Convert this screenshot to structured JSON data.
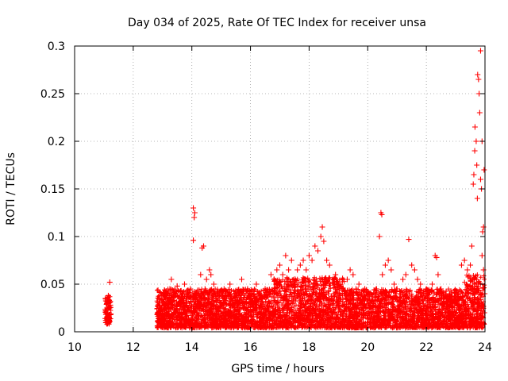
{
  "chart_data": {
    "type": "scatter",
    "title": "Day 034 of 2025, Rate Of TEC Index for receiver unsa",
    "xlabel": "GPS time / hours",
    "ylabel": "ROTI / TECUs",
    "xlim": [
      10,
      24
    ],
    "ylim": [
      0,
      0.3
    ],
    "xticks": [
      10,
      12,
      14,
      16,
      18,
      20,
      22,
      24
    ],
    "xtick_labels": [
      "10",
      "12",
      "14",
      "16",
      "18",
      "20",
      "22",
      "24"
    ],
    "yticks": [
      0,
      0.05,
      0.1,
      0.15,
      0.2,
      0.25,
      0.3
    ],
    "ytick_labels": [
      "0",
      "0.05",
      "0.1",
      "0.15",
      "0.2",
      "0.25",
      "0.3"
    ],
    "grid": true,
    "marker": "+",
    "marker_color": "#ff0000",
    "series": [
      {
        "points": [
          [
            11.05,
            0.035
          ],
          [
            11.08,
            0.02
          ],
          [
            11.1,
            0.03
          ],
          [
            11.12,
            0.015
          ],
          [
            11.15,
            0.025
          ],
          [
            11.18,
            0.033
          ],
          [
            11.2,
            0.018
          ],
          [
            11.22,
            0.028
          ],
          [
            11.1,
            0.01
          ],
          [
            11.15,
            0.038
          ],
          [
            11.2,
            0.052
          ],
          [
            11.12,
            0.024
          ],
          [
            11.18,
            0.012
          ],
          [
            11.06,
            0.022
          ],
          [
            12.85,
            0.02
          ],
          [
            12.9,
            0.035
          ],
          [
            12.95,
            0.015
          ],
          [
            13.0,
            0.03
          ],
          [
            13.05,
            0.025
          ],
          [
            13.1,
            0.04
          ],
          [
            13.15,
            0.018
          ],
          [
            13.2,
            0.032
          ],
          [
            13.25,
            0.045
          ],
          [
            13.3,
            0.055
          ],
          [
            13.35,
            0.025
          ],
          [
            13.4,
            0.038
          ],
          [
            13.45,
            0.02
          ],
          [
            13.5,
            0.048
          ],
          [
            13.55,
            0.03
          ],
          [
            13.6,
            0.042
          ],
          [
            13.65,
            0.015
          ],
          [
            13.7,
            0.035
          ],
          [
            13.75,
            0.05
          ],
          [
            13.8,
            0.028
          ],
          [
            13.85,
            0.04
          ],
          [
            13.9,
            0.022
          ],
          [
            13.95,
            0.045
          ],
          [
            14.05,
            0.13
          ],
          [
            14.08,
            0.12
          ],
          [
            14.1,
            0.125
          ],
          [
            14.05,
            0.096
          ],
          [
            14.15,
            0.04
          ],
          [
            14.2,
            0.03
          ],
          [
            14.3,
            0.06
          ],
          [
            14.35,
            0.088
          ],
          [
            14.4,
            0.09
          ],
          [
            14.45,
            0.045
          ],
          [
            14.5,
            0.055
          ],
          [
            14.55,
            0.03
          ],
          [
            14.6,
            0.065
          ],
          [
            14.65,
            0.06
          ],
          [
            14.7,
            0.035
          ],
          [
            14.75,
            0.05
          ],
          [
            14.8,
            0.025
          ],
          [
            14.9,
            0.04
          ],
          [
            15.0,
            0.03
          ],
          [
            15.1,
            0.045
          ],
          [
            15.2,
            0.02
          ],
          [
            15.3,
            0.05
          ],
          [
            15.4,
            0.035
          ],
          [
            15.5,
            0.04
          ],
          [
            15.6,
            0.028
          ],
          [
            15.7,
            0.055
          ],
          [
            15.8,
            0.03
          ],
          [
            15.9,
            0.045
          ],
          [
            16.0,
            0.035
          ],
          [
            16.1,
            0.03
          ],
          [
            16.2,
            0.05
          ],
          [
            16.3,
            0.04
          ],
          [
            16.4,
            0.035
          ],
          [
            16.5,
            0.045
          ],
          [
            16.6,
            0.03
          ],
          [
            16.7,
            0.06
          ],
          [
            16.8,
            0.055
          ],
          [
            16.9,
            0.065
          ],
          [
            17.0,
            0.07
          ],
          [
            17.1,
            0.06
          ],
          [
            17.2,
            0.08
          ],
          [
            17.3,
            0.065
          ],
          [
            17.4,
            0.075
          ],
          [
            17.5,
            0.05
          ],
          [
            17.6,
            0.065
          ],
          [
            17.7,
            0.07
          ],
          [
            17.8,
            0.075
          ],
          [
            17.9,
            0.065
          ],
          [
            18.0,
            0.08
          ],
          [
            18.1,
            0.075
          ],
          [
            18.2,
            0.09
          ],
          [
            18.3,
            0.085
          ],
          [
            18.4,
            0.1
          ],
          [
            18.45,
            0.11
          ],
          [
            18.5,
            0.095
          ],
          [
            18.6,
            0.075
          ],
          [
            18.7,
            0.07
          ],
          [
            18.8,
            0.055
          ],
          [
            18.9,
            0.06
          ],
          [
            19.0,
            0.05
          ],
          [
            19.1,
            0.045
          ],
          [
            19.2,
            0.04
          ],
          [
            19.3,
            0.055
          ],
          [
            19.4,
            0.065
          ],
          [
            19.5,
            0.06
          ],
          [
            19.6,
            0.045
          ],
          [
            19.7,
            0.05
          ],
          [
            19.8,
            0.04
          ],
          [
            19.9,
            0.045
          ],
          [
            20.0,
            0.035
          ],
          [
            20.1,
            0.04
          ],
          [
            20.2,
            0.03
          ],
          [
            20.3,
            0.045
          ],
          [
            20.4,
            0.1
          ],
          [
            20.45,
            0.125
          ],
          [
            20.48,
            0.123
          ],
          [
            20.5,
            0.06
          ],
          [
            20.6,
            0.07
          ],
          [
            20.7,
            0.075
          ],
          [
            20.8,
            0.065
          ],
          [
            20.9,
            0.05
          ],
          [
            21.0,
            0.045
          ],
          [
            21.1,
            0.04
          ],
          [
            21.2,
            0.055
          ],
          [
            21.3,
            0.06
          ],
          [
            21.4,
            0.097
          ],
          [
            21.5,
            0.07
          ],
          [
            21.6,
            0.065
          ],
          [
            21.7,
            0.055
          ],
          [
            21.8,
            0.05
          ],
          [
            21.9,
            0.04
          ],
          [
            22.0,
            0.045
          ],
          [
            22.1,
            0.035
          ],
          [
            22.2,
            0.05
          ],
          [
            22.3,
            0.08
          ],
          [
            22.35,
            0.078
          ],
          [
            22.4,
            0.06
          ],
          [
            22.5,
            0.045
          ],
          [
            22.6,
            0.04
          ],
          [
            22.7,
            0.035
          ],
          [
            22.8,
            0.04
          ],
          [
            22.9,
            0.03
          ],
          [
            23.0,
            0.035
          ],
          [
            23.1,
            0.04
          ],
          [
            23.2,
            0.07
          ],
          [
            23.3,
            0.075
          ],
          [
            23.4,
            0.065
          ],
          [
            23.5,
            0.07
          ],
          [
            23.55,
            0.09
          ],
          [
            23.6,
            0.155
          ],
          [
            23.62,
            0.165
          ],
          [
            23.65,
            0.19
          ],
          [
            23.66,
            0.215
          ],
          [
            23.7,
            0.2
          ],
          [
            23.72,
            0.175
          ],
          [
            23.74,
            0.14
          ],
          [
            23.75,
            0.27
          ],
          [
            23.78,
            0.265
          ],
          [
            23.8,
            0.25
          ],
          [
            23.82,
            0.23
          ],
          [
            23.85,
            0.16
          ],
          [
            23.88,
            0.15
          ],
          [
            23.9,
            0.2
          ],
          [
            23.92,
            0.105
          ],
          [
            23.95,
            0.11
          ],
          [
            23.97,
            0.17
          ],
          [
            23.85,
            0.295
          ],
          [
            23.9,
            0.08
          ],
          [
            23.95,
            0.065
          ],
          [
            23.98,
            0.02
          ],
          [
            23.99,
            0.04
          ]
        ]
      }
    ]
  }
}
